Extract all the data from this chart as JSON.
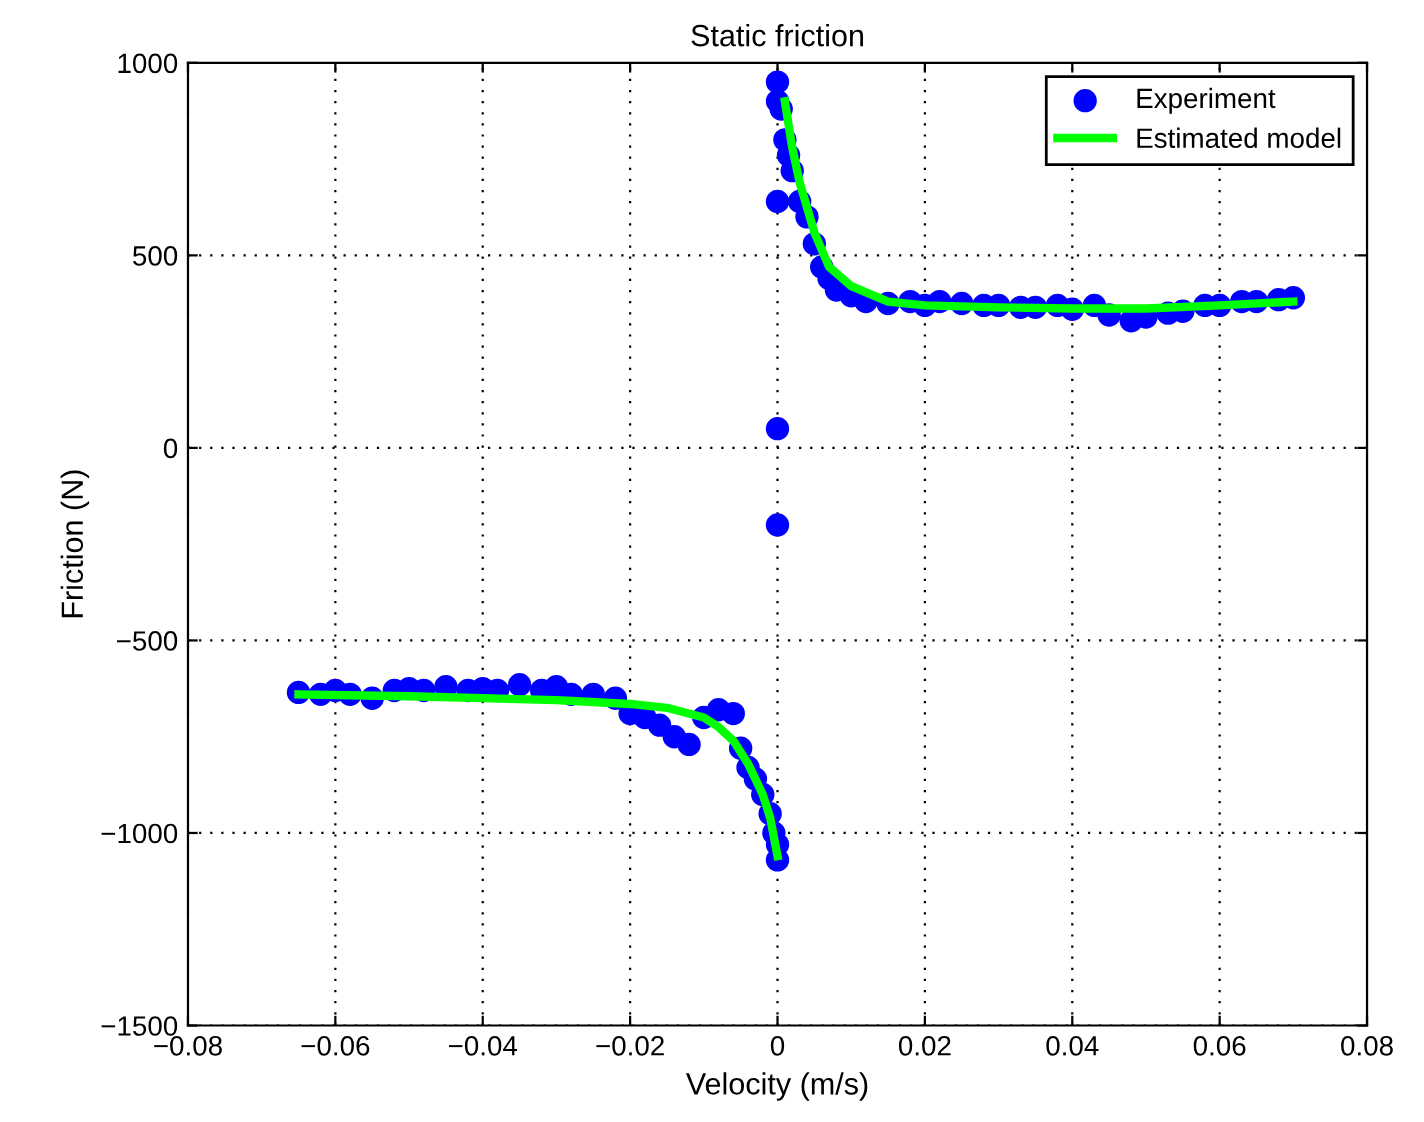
{
  "chart_data": {
    "type": "scatter",
    "title": "Static friction",
    "xlabel": "Velocity (m/s)",
    "ylabel": "Friction (N)",
    "xlim": [
      -0.08,
      0.08
    ],
    "xticks": [
      {
        "value": -0.08,
        "label": "−0.08"
      },
      {
        "value": -0.06,
        "label": "−0.06"
      },
      {
        "value": -0.04,
        "label": "−0.04"
      },
      {
        "value": -0.02,
        "label": "−0.02"
      },
      0,
      0.02,
      0.04,
      0.06,
      0.08
    ],
    "ylim": [
      -1500,
      1000
    ],
    "yticks": [
      {
        "value": -1500,
        "label": "−1500"
      },
      {
        "value": -1000,
        "label": "−1000"
      },
      {
        "value": -500,
        "label": "−500"
      },
      0,
      500,
      1000
    ],
    "grid": true,
    "legend": "top right",
    "series": [
      {
        "name": "Experiment",
        "color": "#0000ff",
        "marker": "circle",
        "x": [
          -0.065,
          -0.062,
          -0.06,
          -0.058,
          -0.055,
          -0.052,
          -0.05,
          -0.048,
          -0.045,
          -0.042,
          -0.04,
          -0.038,
          -0.035,
          -0.032,
          -0.03,
          -0.028,
          -0.025,
          -0.022,
          -0.02,
          -0.018,
          -0.016,
          -0.014,
          -0.012,
          -0.01,
          -0.008,
          -0.006,
          -0.005,
          -0.004,
          -0.003,
          -0.002,
          -0.001,
          -0.0005,
          0,
          0,
          0,
          0,
          0,
          0,
          0,
          0.0005,
          0.001,
          0.0015,
          0.002,
          0.003,
          0.004,
          0.005,
          0.006,
          0.007,
          0.008,
          0.01,
          0.012,
          0.015,
          0.018,
          0.02,
          0.022,
          0.025,
          0.028,
          0.03,
          0.033,
          0.035,
          0.038,
          0.04,
          0.043,
          0.045,
          0.048,
          0.05,
          0.053,
          0.055,
          0.058,
          0.06,
          0.063,
          0.065,
          0.068,
          0.07
        ],
        "values": [
          -635,
          -640,
          -630,
          -640,
          -650,
          -630,
          -625,
          -630,
          -620,
          -630,
          -625,
          -630,
          -615,
          -630,
          -620,
          -640,
          -640,
          -650,
          -690,
          -700,
          -720,
          -750,
          -770,
          -700,
          -680,
          -690,
          -780,
          -830,
          -860,
          -900,
          -950,
          -1000,
          -1030,
          -1070,
          950,
          900,
          640,
          50,
          -200,
          880,
          800,
          760,
          720,
          640,
          600,
          530,
          470,
          440,
          410,
          395,
          380,
          375,
          380,
          370,
          380,
          375,
          370,
          370,
          365,
          365,
          370,
          360,
          370,
          345,
          330,
          340,
          350,
          355,
          370,
          370,
          380,
          380,
          385,
          390
        ]
      },
      {
        "name": "Estimated model",
        "type": "line",
        "color": "#00ff00",
        "marker": "none",
        "line_style": "solid",
        "x": [
          -0.065,
          -0.05,
          -0.04,
          -0.03,
          -0.02,
          -0.015,
          -0.01,
          -0.008,
          -0.006,
          -0.004,
          -0.003,
          -0.002,
          -0.001,
          0,
          0.0002,
          0.001,
          0.002,
          0.003,
          0.005,
          0.007,
          0.01,
          0.015,
          0.02,
          0.03,
          0.04,
          0.05,
          0.06,
          0.07
        ],
        "values": [
          -640,
          -645,
          -650,
          -655,
          -665,
          -675,
          -700,
          -725,
          -760,
          -820,
          -860,
          -900,
          -960,
          -1060,
          null,
          900,
          780,
          690,
          560,
          470,
          420,
          380,
          370,
          365,
          362,
          362,
          370,
          380
        ]
      }
    ]
  }
}
